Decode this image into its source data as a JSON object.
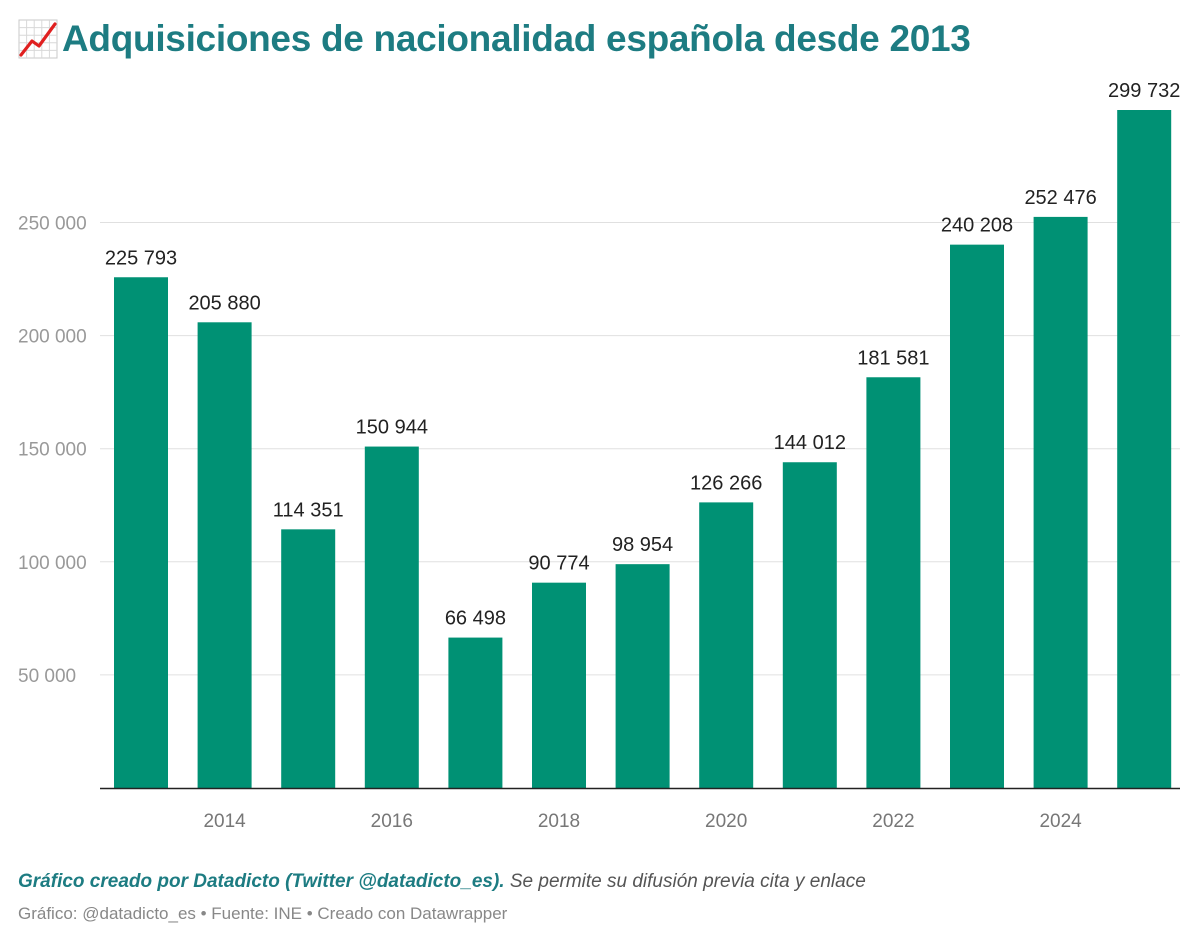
{
  "header": {
    "icon": "chart-increasing-icon",
    "title": "Adquisiciones de nacionalidad española desde 2013"
  },
  "colors": {
    "bar": "#009174",
    "title": "#1d7c82",
    "grid": "#e0e0e0",
    "axis": "#222222",
    "tick_label": "#999999",
    "value_label": "#222222"
  },
  "chart_data": {
    "type": "bar",
    "categories": [
      "2013",
      "2014",
      "2015",
      "2016",
      "2017",
      "2018",
      "2019",
      "2020",
      "2021",
      "2022",
      "2023",
      "2024",
      "2025"
    ],
    "values": [
      225793,
      205880,
      114351,
      150944,
      66498,
      90774,
      98954,
      126266,
      144012,
      181581,
      240208,
      252476,
      299732
    ],
    "value_labels": [
      "225 793",
      "205 880",
      "114 351",
      "150 944",
      "66 498",
      "90 774",
      "98 954",
      "126 266",
      "144 012",
      "181 581",
      "240 208",
      "252 476",
      "299 732"
    ],
    "x_tick_labels": [
      "2014",
      "2016",
      "2018",
      "2020",
      "2022",
      "2024"
    ],
    "y_ticks": [
      50000,
      100000,
      150000,
      200000,
      250000
    ],
    "y_tick_labels": [
      "50 000",
      "100 000",
      "150 000",
      "200 000",
      "250 000"
    ],
    "ylim": [
      0,
      299732
    ],
    "grid": true,
    "title": "Adquisiciones de nacionalidad española desde 2013",
    "xlabel": "",
    "ylabel": ""
  },
  "footer": {
    "credit_bold": "Gráfico creado por Datadicto (Twitter @datadicto_es).",
    "credit_text": "Se permite su difusión previa cita y enlace",
    "source_line": "Gráfico: @datadicto_es • Fuente: INE • Creado con Datawrapper"
  }
}
